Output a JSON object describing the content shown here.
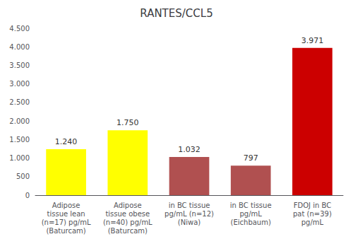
{
  "chart_data": {
    "type": "bar",
    "title": "RANTES/CCL5",
    "categories": [
      "Adipose\ntissue lean\n(n=17) pg/mL\n(Baturcam)",
      "Adipose\ntissue obese\n(n=40) pg/mL\n(Baturcam)",
      "in BC tissue\npg/mL (n=12)\n(Niwa)",
      "in BC tissue\npg/mL\n(Eichbaum)",
      "FDOJ in BC\npat (n=39)\npg/mL"
    ],
    "values": [
      1240,
      1750,
      1032,
      797,
      3971
    ],
    "value_labels": [
      "1.240",
      "1.750",
      "1.032",
      "797",
      "3.971"
    ],
    "colors": [
      "#FFFF00",
      "#FFFF00",
      "#B05050",
      "#B05050",
      "#CC0000"
    ],
    "ylim": [
      0,
      4500
    ],
    "yticks": [
      0,
      500,
      {
        "value": 1000,
        "label": "1.000"
      },
      {
        "value": 1500,
        "label": "1.500"
      },
      {
        "value": 2000,
        "label": "2.000"
      },
      {
        "value": 2500,
        "label": "2.500"
      },
      {
        "value": 3000,
        "label": "3.000"
      },
      {
        "value": 3500,
        "label": "3.500"
      },
      {
        "value": 4000,
        "label": "4.000"
      },
      {
        "value": 4500,
        "label": "4.500"
      }
    ],
    "grid": false,
    "data_labels": true
  }
}
